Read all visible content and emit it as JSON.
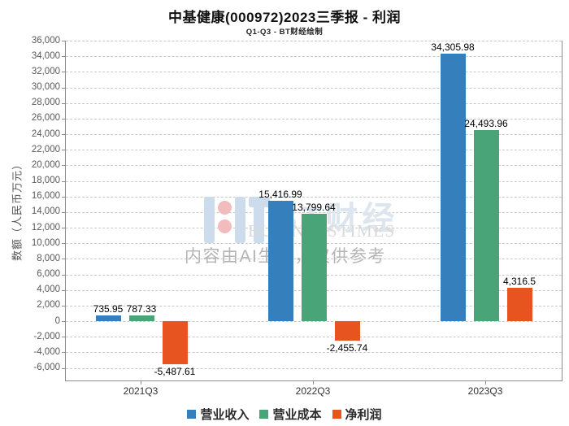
{
  "header": {
    "title": "中基健康(000972)2023三季报 - 利润",
    "subtitle": "Q1-Q3 - BT财经绘制"
  },
  "watermark": {
    "logo": "bt-logo",
    "brand_cn": "BT财经",
    "brand_en": "BUSINESSTIMES",
    "disclaimer": "内容由AI生成，仅供参考"
  },
  "chart_data": {
    "type": "bar",
    "title": "中基健康(000972)2023三季报 - 利润",
    "subtitle": "Q1-Q3 - BT财经绘制",
    "categories": [
      "2021Q3",
      "2022Q3",
      "2023Q3"
    ],
    "series": [
      {
        "name": "营业收入",
        "color": "#3580bc",
        "values": [
          735.95,
          15416.99,
          34305.98
        ],
        "labels": [
          "735.95",
          "15,416.99",
          "34,305.98"
        ]
      },
      {
        "name": "营业成本",
        "color": "#49a577",
        "values": [
          787.33,
          13799.64,
          24493.96
        ],
        "labels": [
          "787.33",
          "13,799.64",
          "24,493.96"
        ]
      },
      {
        "name": "净利润",
        "color": "#e8541f",
        "values": [
          -5487.61,
          -2455.74,
          4316.5
        ],
        "labels": [
          "-5,487.61",
          "-2,455.74",
          "4,316.5"
        ]
      }
    ],
    "ylabel": "数额（人民币万元）",
    "xlabel": "",
    "ylim": [
      -7600,
      36000
    ],
    "yticks": {
      "min": -6000,
      "max": 36000,
      "step": 2000
    },
    "grid": "dashed-horizontal",
    "legend_position": "bottom-center"
  }
}
